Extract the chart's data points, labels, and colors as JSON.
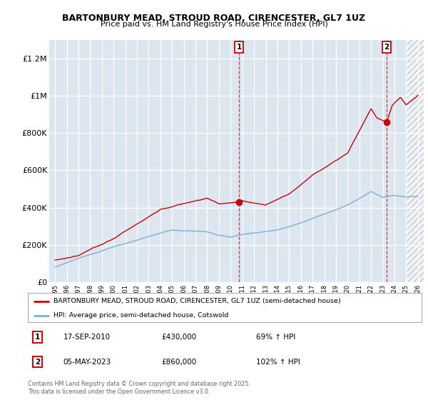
{
  "title": "BARTONBURY MEAD, STROUD ROAD, CIRENCESTER, GL7 1UZ",
  "subtitle": "Price paid vs. HM Land Registry's House Price Index (HPI)",
  "property_line_color": "#cc0000",
  "hpi_line_color": "#7bafd4",
  "background_color": "#dce6f1",
  "plot_bg_color": "#dce6f1",
  "ylim": [
    0,
    1300000
  ],
  "yticks": [
    0,
    200000,
    400000,
    600000,
    800000,
    1000000,
    1200000
  ],
  "ytick_labels": [
    "£0",
    "£200K",
    "£400K",
    "£600K",
    "£800K",
    "£1M",
    "£1.2M"
  ],
  "xmin": 1995,
  "xmax": 2026,
  "sale1_x": 2010.72,
  "sale1_y": 430000,
  "sale2_x": 2023.34,
  "sale2_y": 860000,
  "hatch_start": 2025.0,
  "legend_property": "BARTONBURY MEAD, STROUD ROAD, CIRENCESTER, GL7 1UZ (semi-detached house)",
  "legend_hpi": "HPI: Average price, semi-detached house, Cotswold",
  "annotation1_box": "1",
  "annotation1_date": "17-SEP-2010",
  "annotation1_price": "£430,000",
  "annotation1_hpi": "69% ↑ HPI",
  "annotation2_box": "2",
  "annotation2_date": "05-MAY-2023",
  "annotation2_price": "£860,000",
  "annotation2_hpi": "102% ↑ HPI",
  "footer": "Contains HM Land Registry data © Crown copyright and database right 2025.\nThis data is licensed under the Open Government Licence v3.0."
}
